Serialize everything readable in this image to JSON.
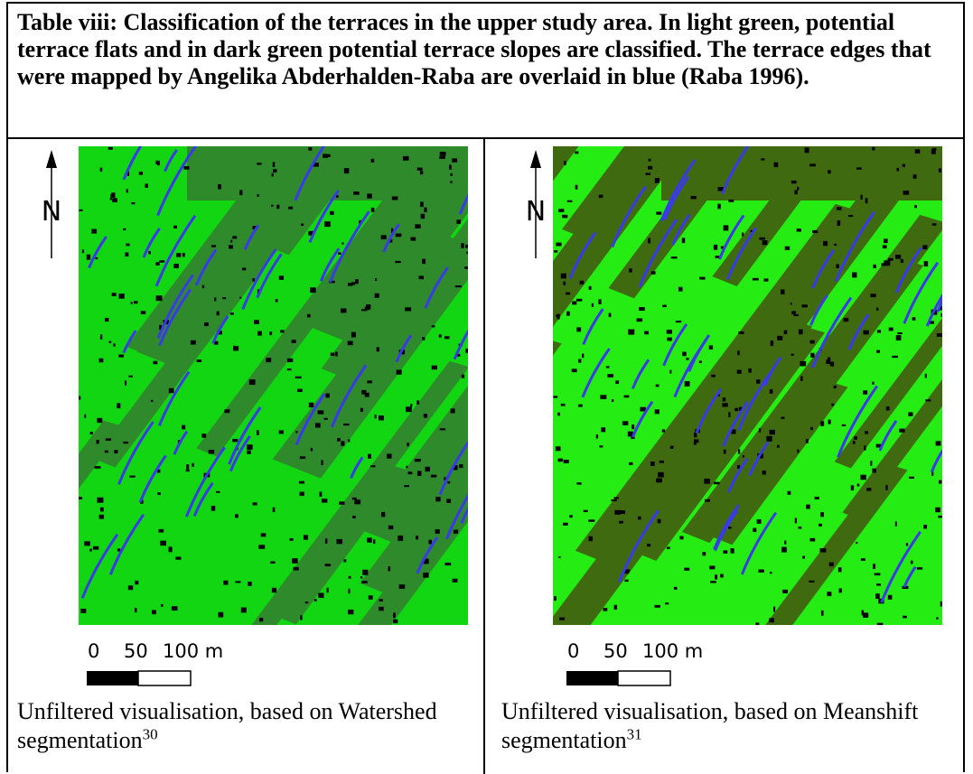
{
  "caption": "Table viii: Classification of the terraces in the upper study area. In light green, potential terrace flats and in dark green potential terrace slopes are classified. The terrace edges that were mapped by Angelika Abderhalden-Raba are overlaid in blue (Raba 1996).",
  "cells": [
    {
      "north": "N",
      "scale_labels": [
        "0",
        "50",
        "100 m"
      ],
      "caption": "Unfiltered visualisation, based on Watershed segmentation",
      "footnote": "30"
    },
    {
      "north": "N",
      "scale_labels": [
        "0",
        "50",
        "100 m"
      ],
      "caption": "Unfiltered visualisation, based on Meanshift segmentation",
      "footnote": "31"
    }
  ]
}
